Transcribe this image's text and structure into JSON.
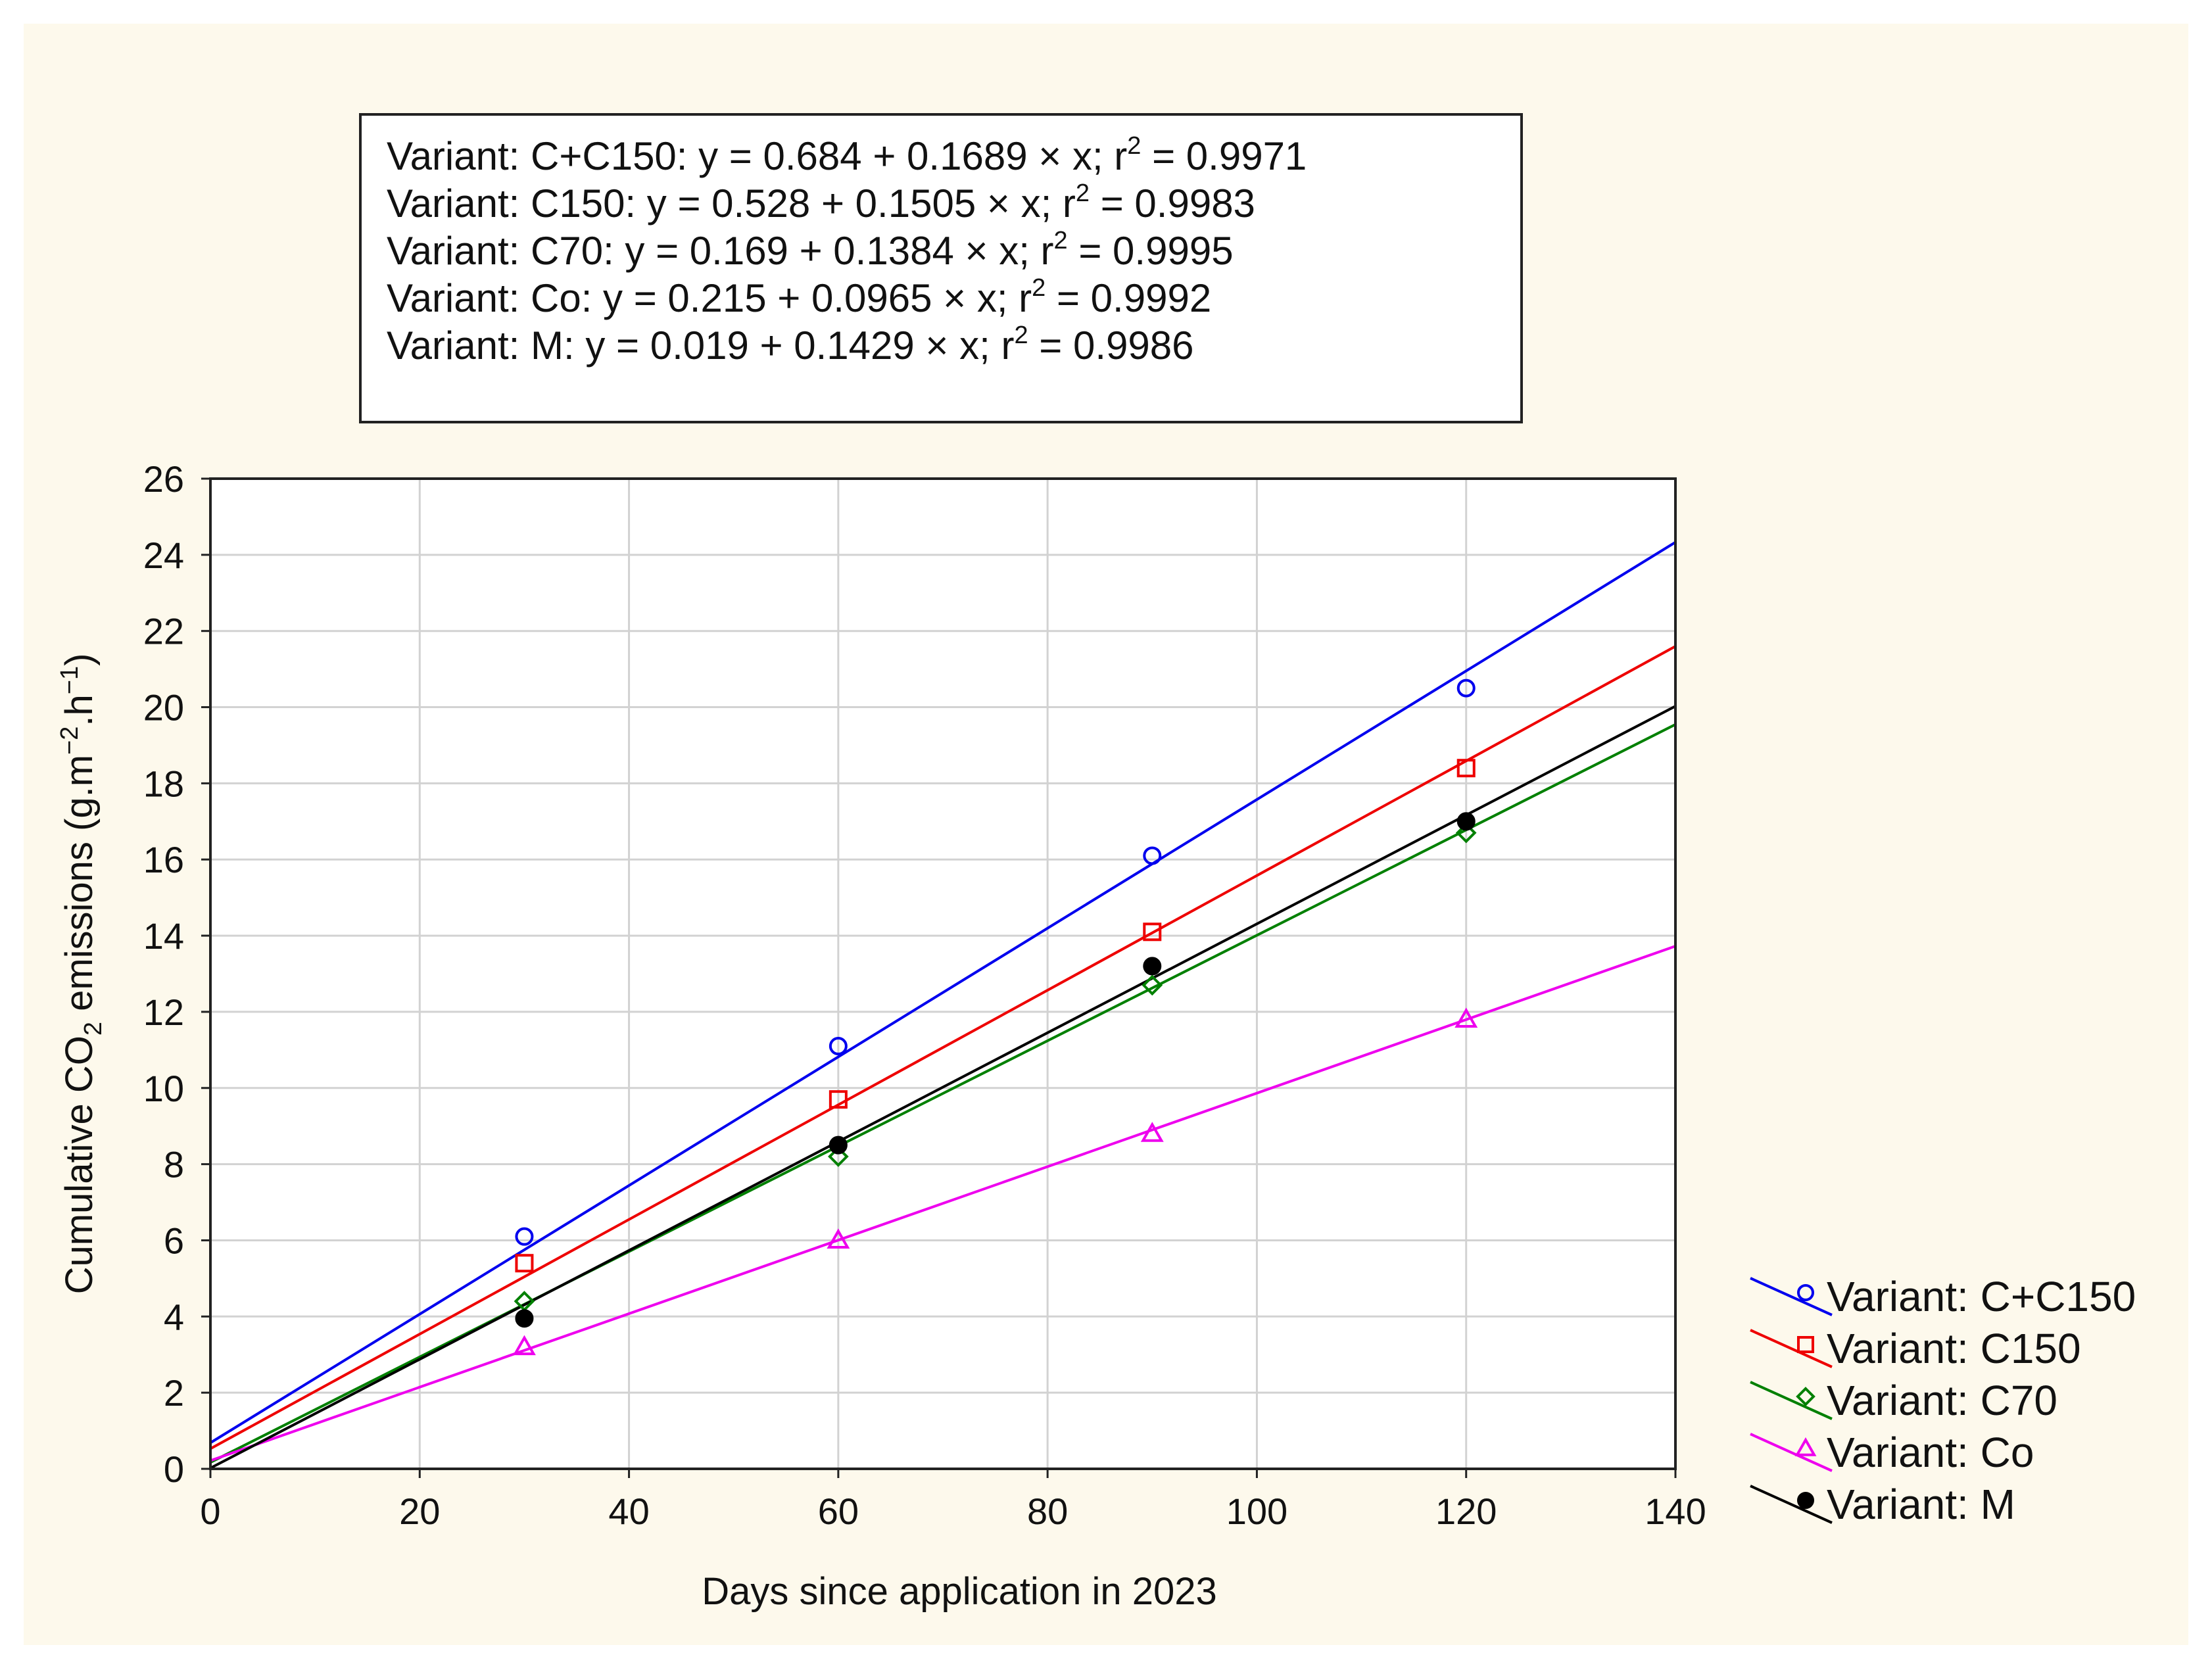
{
  "chart_data": {
    "type": "scatter",
    "xlabel": "Days since application in 2023",
    "ylabel": {
      "prefix": "Cumulative CO",
      "sub": "2",
      "middle": " emissions (g.m",
      "sup1": "−2",
      "middle2": ".h",
      "sup2": "−1",
      "suffix": ")"
    },
    "xlim": [
      0,
      140
    ],
    "ylim": [
      0,
      26
    ],
    "xticks": [
      0,
      20,
      40,
      60,
      80,
      100,
      120,
      140
    ],
    "yticks": [
      0,
      2,
      4,
      6,
      8,
      10,
      12,
      14,
      16,
      18,
      20,
      22,
      24,
      26
    ],
    "grid": true,
    "legend_position": "right-bottom",
    "equations": [
      {
        "pre": "Variant: C+C150: y = 0.684 + 0.1689 × x; r",
        "sup": "2",
        "post": " = 0.9971"
      },
      {
        "pre": "Variant: C150: y = 0.528 + 0.1505 × x; r",
        "sup": "2",
        "post": " = 0.9983"
      },
      {
        "pre": "Variant: C70: y = 0.169 + 0.1384 × x; r",
        "sup": "2",
        "post": " = 0.9995"
      },
      {
        "pre": "Variant: Co: y = 0.215 + 0.0965 × x; r",
        "sup": "2",
        "post": " = 0.9992"
      },
      {
        "pre": "Variant: M: y = 0.019 + 0.1429 × x; r",
        "sup": "2",
        "post": " = 0.9986"
      }
    ],
    "series": [
      {
        "name": "Variant: C+C150",
        "color": "#0000ee",
        "marker": "circle",
        "intercept": 0.684,
        "slope": 0.1689,
        "x": [
          30,
          60,
          90,
          120
        ],
        "y": [
          6.1,
          11.1,
          16.1,
          20.5
        ]
      },
      {
        "name": "Variant: C150",
        "color": "#ee0000",
        "marker": "square",
        "intercept": 0.528,
        "slope": 0.1505,
        "x": [
          30,
          60,
          90,
          120
        ],
        "y": [
          5.4,
          9.7,
          14.1,
          18.4
        ]
      },
      {
        "name": "Variant: C70",
        "color": "#008000",
        "marker": "diamond",
        "intercept": 0.169,
        "slope": 0.1384,
        "x": [
          30,
          60,
          90,
          120
        ],
        "y": [
          4.4,
          8.2,
          12.7,
          16.7
        ]
      },
      {
        "name": "Variant: Co",
        "color": "#ee00ee",
        "marker": "triangle",
        "intercept": 0.215,
        "slope": 0.0965,
        "x": [
          30,
          60,
          90,
          120
        ],
        "y": [
          3.2,
          6.0,
          8.8,
          11.8
        ]
      },
      {
        "name": "Variant: M",
        "color": "#000000",
        "marker": "filled-circle",
        "intercept": 0.019,
        "slope": 0.1429,
        "x": [
          30,
          60,
          90,
          120
        ],
        "y": [
          3.95,
          8.5,
          13.2,
          17.0
        ]
      }
    ]
  }
}
